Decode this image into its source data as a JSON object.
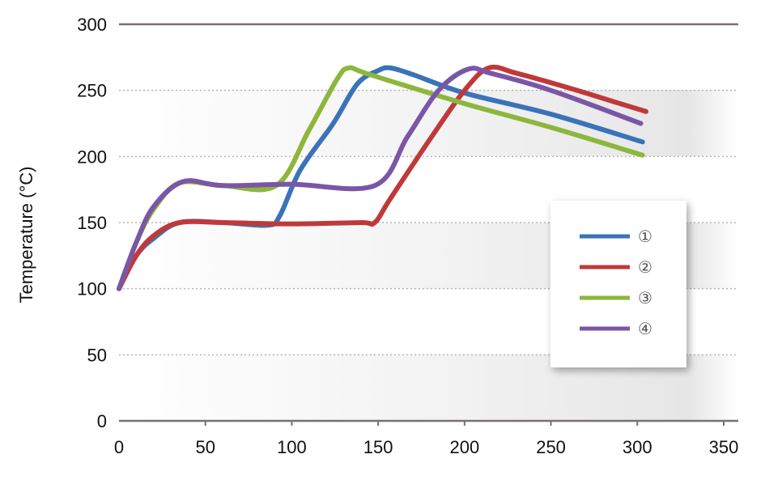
{
  "chart_data": {
    "type": "line",
    "title": "",
    "xlabel": "",
    "ylabel": "Temperature (°C)",
    "xlim": [
      0,
      350
    ],
    "ylim": [
      0,
      300
    ],
    "x_ticks": [
      0,
      50,
      100,
      150,
      200,
      250,
      300,
      350
    ],
    "y_ticks": [
      0,
      50,
      100,
      150,
      200,
      250,
      300
    ],
    "grid": "horizontal dotted",
    "legend_position": "right, inside plot",
    "series": [
      {
        "name": "①",
        "color": "#3a73b8",
        "points": [
          [
            0,
            100
          ],
          [
            10,
            125
          ],
          [
            20,
            138
          ],
          [
            35,
            150
          ],
          [
            60,
            150
          ],
          [
            86,
            148
          ],
          [
            93,
            155
          ],
          [
            105,
            190
          ],
          [
            124,
            225
          ],
          [
            138,
            255
          ],
          [
            150,
            265
          ],
          [
            157,
            267
          ],
          [
            170,
            262
          ],
          [
            200,
            248
          ],
          [
            250,
            232
          ],
          [
            303,
            211
          ]
        ]
      },
      {
        "name": "②",
        "color": "#c0393a",
        "points": [
          [
            0,
            100
          ],
          [
            10,
            125
          ],
          [
            20,
            140
          ],
          [
            35,
            150
          ],
          [
            60,
            150
          ],
          [
            100,
            149
          ],
          [
            140,
            150
          ],
          [
            148,
            150
          ],
          [
            157,
            168
          ],
          [
            181,
            215
          ],
          [
            200,
            250
          ],
          [
            214,
            267
          ],
          [
            230,
            263
          ],
          [
            260,
            252
          ],
          [
            290,
            240
          ],
          [
            305,
            234
          ]
        ]
      },
      {
        "name": "③",
        "color": "#8db63c",
        "points": [
          [
            0,
            100
          ],
          [
            10,
            135
          ],
          [
            20,
            160
          ],
          [
            35,
            180
          ],
          [
            60,
            178
          ],
          [
            91,
            178
          ],
          [
            110,
            220
          ],
          [
            126,
            258
          ],
          [
            133,
            267
          ],
          [
            145,
            262
          ],
          [
            200,
            240
          ],
          [
            250,
            222
          ],
          [
            303,
            201
          ]
        ]
      },
      {
        "name": "④",
        "color": "#7b56a6",
        "points": [
          [
            0,
            100
          ],
          [
            10,
            135
          ],
          [
            20,
            162
          ],
          [
            37,
            181
          ],
          [
            60,
            178
          ],
          [
            100,
            179
          ],
          [
            148,
            178
          ],
          [
            167,
            215
          ],
          [
            185,
            250
          ],
          [
            202,
            266
          ],
          [
            215,
            263
          ],
          [
            250,
            250
          ],
          [
            302,
            225
          ]
        ]
      }
    ]
  },
  "axis": {
    "y_label": "Temperature (°C)",
    "y_ticks": [
      "0",
      "50",
      "100",
      "150",
      "200",
      "250",
      "300"
    ],
    "x_ticks": [
      "0",
      "50",
      "100",
      "150",
      "200",
      "250",
      "300",
      "350"
    ]
  },
  "legend": {
    "items": [
      {
        "label": "①",
        "color": "#3a73b8"
      },
      {
        "label": "②",
        "color": "#c0393a"
      },
      {
        "label": "③",
        "color": "#8db63c"
      },
      {
        "label": "④",
        "color": "#7b56a6"
      }
    ]
  }
}
